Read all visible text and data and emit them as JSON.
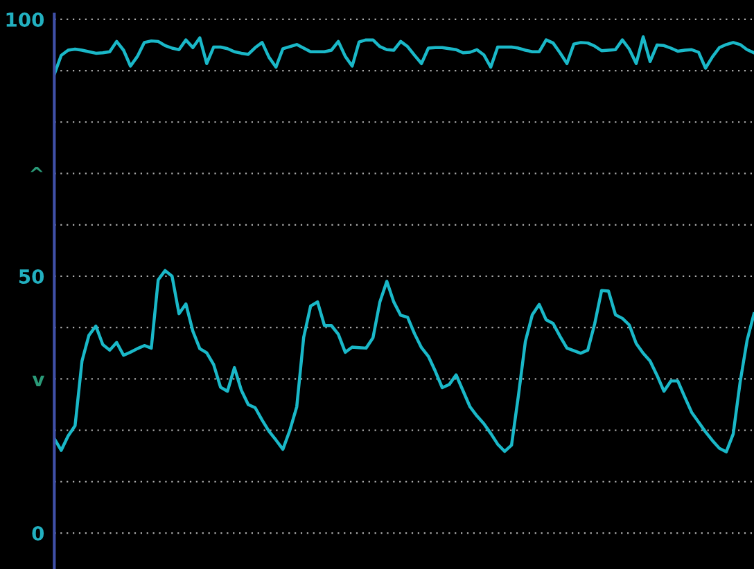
{
  "chart_data": {
    "type": "line",
    "ylim": [
      -7,
      101
    ],
    "grid": "y",
    "line_style": "solid",
    "marker": "none",
    "categories": [
      null,
      null,
      null,
      null,
      null,
      null,
      null,
      null,
      null,
      null,
      null,
      null,
      null,
      null,
      null,
      null,
      null,
      null,
      null,
      null,
      null,
      null,
      null,
      null,
      null,
      null,
      null,
      null,
      null,
      null,
      null,
      null,
      null,
      null,
      null,
      null,
      null,
      null,
      null,
      null,
      null,
      null,
      null,
      null,
      null,
      null,
      null,
      null,
      null,
      null,
      null,
      null,
      null,
      null,
      null,
      null,
      null,
      null,
      null,
      null,
      null,
      null,
      null,
      null,
      null,
      null,
      null,
      null,
      null,
      null,
      null,
      null,
      null,
      null,
      null,
      null,
      null,
      null,
      null,
      null,
      null,
      null,
      null,
      null,
      null,
      null,
      null,
      null,
      null,
      null,
      null,
      null,
      null,
      null,
      null,
      null,
      null,
      null,
      null,
      null,
      null,
      null
    ],
    "yticks": [
      0,
      {
        "value": 10,
        "label": null
      },
      {
        "value": 20,
        "label": null
      },
      {
        "value": 30,
        "label": "v"
      },
      {
        "value": 40,
        "label": null
      },
      50,
      {
        "value": 60,
        "label": null
      },
      {
        "value": 70,
        "label": "^"
      },
      {
        "value": 80,
        "label": null
      },
      {
        "value": 90,
        "label": null
      },
      100
    ],
    "series": [
      {
        "color": "#1ab8c8",
        "values": [
          89.3,
          93,
          94,
          94.2,
          94,
          93.7,
          93.4,
          93.5,
          93.7,
          95.7,
          94,
          90.9,
          92.8,
          95.5,
          95.8,
          95.7,
          94.9,
          94.4,
          94.1,
          96,
          94.5,
          96.4,
          91.4,
          94.6,
          94.6,
          94.3,
          93.7,
          93.4,
          93.2,
          94.5,
          95.5,
          92.6,
          90.7,
          94.3,
          94.7,
          95.1,
          94.4,
          93.7,
          93.7,
          93.7,
          94,
          95.7,
          92.8,
          90.9,
          95.6,
          96,
          96,
          94.7,
          94.1,
          94,
          95.7,
          94.7,
          93,
          91.4,
          94.4,
          94.5,
          94.5,
          94.3,
          94.1,
          93.5,
          93.6,
          94.1,
          93.1,
          90.7,
          94.6,
          94.6,
          94.6,
          94.4,
          94,
          93.7,
          93.7,
          96,
          95.4,
          93.5,
          91.4,
          95.2,
          95.5,
          95.4,
          94.8,
          93.9,
          94,
          94.1,
          96,
          94.2,
          91.4,
          96.6,
          91.8,
          95,
          94.9,
          94.4,
          93.8,
          94,
          94.1,
          93.6,
          90.5,
          92.7,
          94.5,
          95.1,
          95.5,
          95.1,
          94.1,
          93.5
        ]
      },
      {
        "color": "#1ab8c8",
        "values": [
          18.4,
          16.1,
          18.9,
          20.9,
          33.5,
          38.5,
          40.3,
          36.7,
          35.6,
          37.1,
          34.6,
          35.2,
          35.9,
          36.5,
          36,
          49.3,
          51.1,
          50,
          42.7,
          44.6,
          39.3,
          35.9,
          35.1,
          32.8,
          28.4,
          27.6,
          32.2,
          27.8,
          25,
          24.4,
          22,
          19.8,
          18.1,
          16.3,
          20,
          24.6,
          38.1,
          44.2,
          45,
          40.4,
          40.4,
          38.7,
          35.2,
          36.2,
          36.1,
          36,
          38,
          45,
          49,
          45,
          42.4,
          42,
          38.8,
          36.1,
          34.4,
          31.5,
          28.3,
          28.9,
          30.8,
          27.7,
          24.6,
          22.8,
          21.3,
          19.4,
          17.3,
          15.9,
          17.1,
          26.8,
          37.3,
          42.5,
          44.5,
          41.5,
          40.8,
          38.3,
          36,
          35.5,
          35,
          35.6,
          40.7,
          47.2,
          47.1,
          42.5,
          41.8,
          40.5,
          36.9,
          35,
          33.5,
          30.7,
          27.6,
          29.6,
          29.6,
          26.5,
          23.5,
          21.6,
          19.7,
          18,
          16.5,
          15.8,
          19.3,
          29.4,
          37.5,
          42.7
        ]
      }
    ]
  }
}
